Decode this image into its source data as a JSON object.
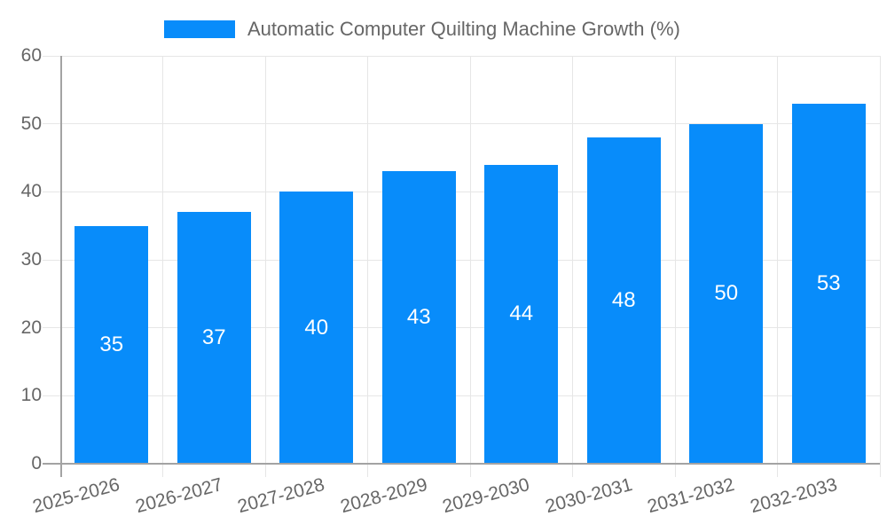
{
  "chart_data": {
    "type": "bar",
    "title": "Automatic Computer Quilting Machine Growth (%)",
    "categories": [
      "2025-2026",
      "2026-2027",
      "2027-2028",
      "2028-2029",
      "2029-2030",
      "2030-2031",
      "2031-2032",
      "2032-2033"
    ],
    "series": [
      {
        "name": "Automatic Computer Quilting Machine Growth (%)",
        "values": [
          35,
          37,
          40,
          43,
          44,
          48,
          50,
          53
        ]
      }
    ],
    "xlabel": "",
    "ylabel": "",
    "ylim": [
      0,
      60
    ],
    "yticks": [
      0,
      10,
      20,
      30,
      40,
      50,
      60
    ],
    "grid": true,
    "legend_position": "top",
    "bar_labels_shown": true,
    "colors": {
      "bar": "#088cfa",
      "bar_label": "#ffffff",
      "axis_text": "#666666",
      "gridline": "#e6e6e6",
      "axis_line": "#a3a3a3",
      "background": "#ffffff"
    }
  }
}
